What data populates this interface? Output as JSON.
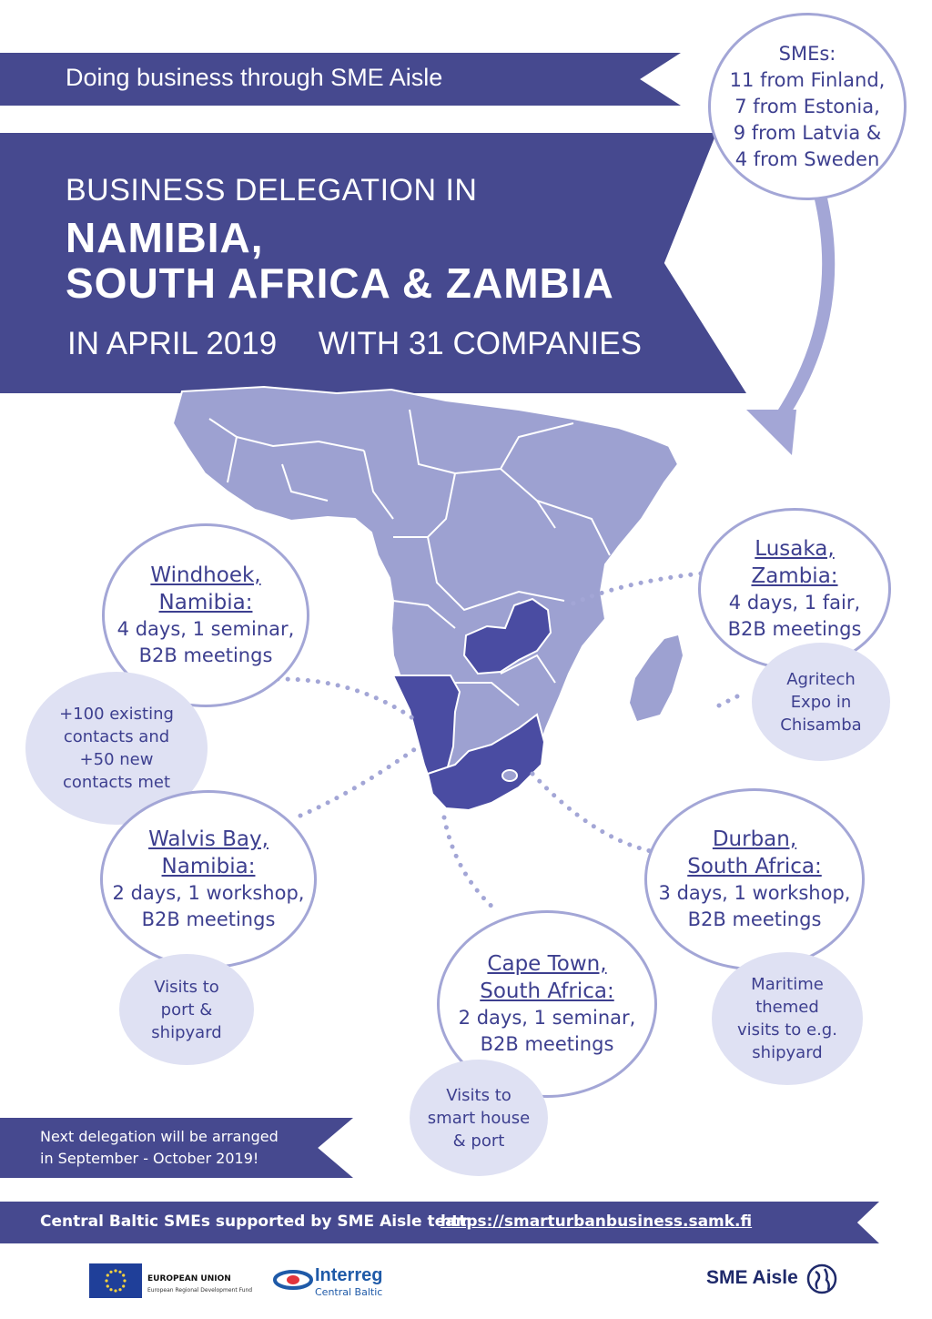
{
  "header": {
    "tagline": "Doing business through SME Aisle",
    "title_pre": "BUSINESS DELEGATION IN",
    "title_line1": "NAMIBIA,",
    "title_line2": "SOUTH AFRICA & ZAMBIA",
    "title_date": "IN APRIL 2019",
    "title_companies": "WITH 31 COMPANIES"
  },
  "smes": {
    "heading": "SMEs:",
    "lines": [
      "11 from Finland,",
      "7 from Estonia,",
      "9 from Latvia &",
      "4 from Sweden"
    ]
  },
  "stops": {
    "windhoek": {
      "title1": "Windhoek,",
      "title2": "Namibia:",
      "line1": "4 days, 1 seminar,",
      "line2": "B2B meetings"
    },
    "lusaka": {
      "title1": "Lusaka,",
      "title2": "Zambia:",
      "line1": "4 days, 1 fair,",
      "line2": "B2B meetings"
    },
    "walvis": {
      "title1": "Walvis Bay,",
      "title2": "Namibia:",
      "line1": "2 days, 1 workshop,",
      "line2": "B2B meetings"
    },
    "durban": {
      "title1": "Durban,",
      "title2": "South Africa:",
      "line1": "3 days, 1 workshop,",
      "line2": "B2B meetings"
    },
    "capetown": {
      "title1": "Cape Town,",
      "title2": "South Africa:",
      "line1": "2 days, 1 seminar,",
      "line2": "B2B meetings"
    }
  },
  "bubbles": {
    "contacts": [
      "+100 existing",
      "contacts and",
      "+50 new",
      "contacts met"
    ],
    "agritech": [
      "Agritech",
      "Expo in",
      "Chisamba"
    ],
    "port": [
      "Visits to",
      "port &",
      "shipyard"
    ],
    "maritime": [
      "Maritime",
      "themed",
      "visits to e.g.",
      "shipyard"
    ],
    "smarthouse": [
      "Visits to",
      "smart house",
      "& port"
    ]
  },
  "next": {
    "line1": "Next delegation will be arranged",
    "line2": "in September - October 2019!"
  },
  "footer": {
    "support_text": "Central Baltic SMEs supported by SME Aisle team",
    "url": "https://smarturbanbusiness.samk.fi"
  },
  "logos": {
    "eu_title": "EUROPEAN UNION",
    "eu_sub": "European Regional Development Fund",
    "interreg_title": "Interreg",
    "interreg_sub": "Central Baltic",
    "sme_aisle": "SME Aisle"
  },
  "colors": {
    "primary": "#46498f",
    "map": "#9da1d1",
    "highlight": "#4a4ca2",
    "bubble": "#dfe1f3",
    "ring": "#a3a6d6"
  }
}
